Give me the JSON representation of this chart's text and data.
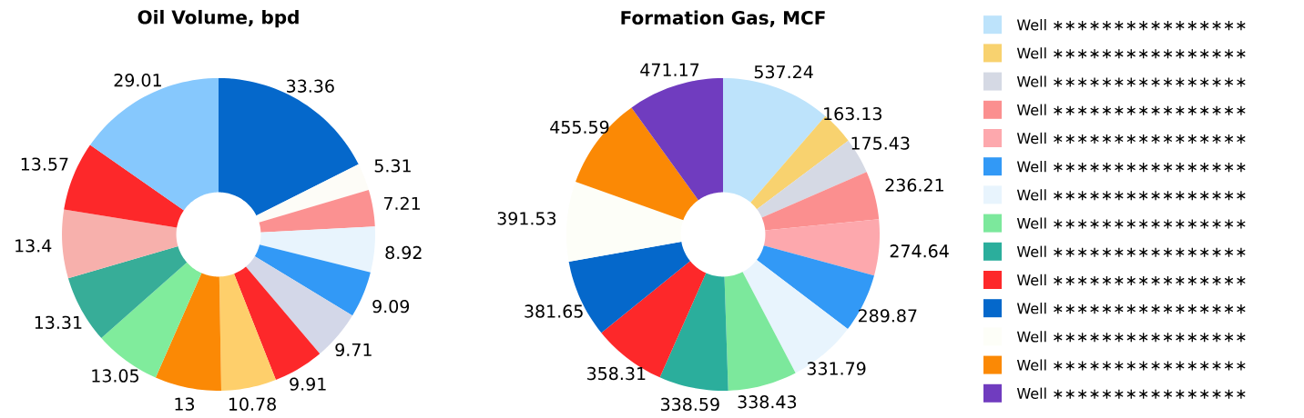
{
  "chart_data": [
    {
      "type": "donut",
      "title": "Oil Volume, bpd",
      "categories": [
        null,
        null,
        null,
        null,
        null,
        null,
        null,
        null,
        null,
        null,
        null,
        null,
        null,
        null
      ],
      "values": [
        33.36,
        5.31,
        7.21,
        8.92,
        9.09,
        9.71,
        9.91,
        10.78,
        13,
        13.05,
        13.31,
        13.4,
        13.57,
        29.01
      ],
      "colors": [
        "#0568cb",
        "#fdfcf7",
        "#fb9191",
        "#e8f4fd",
        "#3299f6",
        "#d3d7e8",
        "#fd282a",
        "#fecf6b",
        "#fb8905",
        "#80ec9c",
        "#37ad98",
        "#f7b0ac",
        "#fd282a",
        "#86c8fd"
      ],
      "data_labels": true
    },
    {
      "type": "donut",
      "title": "Formation Gas, MCF",
      "categories": [
        "Well ∗∗∗∗∗∗∗∗∗∗∗∗∗∗∗∗",
        "Well ∗∗∗∗∗∗∗∗∗∗∗∗∗∗∗∗",
        "Well ∗∗∗∗∗∗∗∗∗∗∗∗∗∗∗∗",
        "Well ∗∗∗∗∗∗∗∗∗∗∗∗∗∗∗∗",
        "Well ∗∗∗∗∗∗∗∗∗∗∗∗∗∗∗∗",
        "Well ∗∗∗∗∗∗∗∗∗∗∗∗∗∗∗∗",
        "Well ∗∗∗∗∗∗∗∗∗∗∗∗∗∗∗∗",
        "Well ∗∗∗∗∗∗∗∗∗∗∗∗∗∗∗∗",
        "Well ∗∗∗∗∗∗∗∗∗∗∗∗∗∗∗∗",
        "Well ∗∗∗∗∗∗∗∗∗∗∗∗∗∗∗∗",
        "Well ∗∗∗∗∗∗∗∗∗∗∗∗∗∗∗∗",
        "Well ∗∗∗∗∗∗∗∗∗∗∗∗∗∗∗∗",
        "Well ∗∗∗∗∗∗∗∗∗∗∗∗∗∗∗∗",
        "Well ∗∗∗∗∗∗∗∗∗∗∗∗∗∗∗∗"
      ],
      "values": [
        537.24,
        163.13,
        175.43,
        236.21,
        274.64,
        289.87,
        331.79,
        338.43,
        338.59,
        358.31,
        381.65,
        391.53,
        455.59,
        471.17
      ],
      "colors": [
        "#bde3fb",
        "#f8d26f",
        "#d5d9e4",
        "#fb8f8f",
        "#fda8ad",
        "#3299f6",
        "#e8f4fd",
        "#7ce89c",
        "#2bae9c",
        "#fd282a",
        "#0568cb",
        "#fdfef8",
        "#fb8905",
        "#703cbf"
      ],
      "data_labels": true,
      "legend": "right"
    }
  ]
}
